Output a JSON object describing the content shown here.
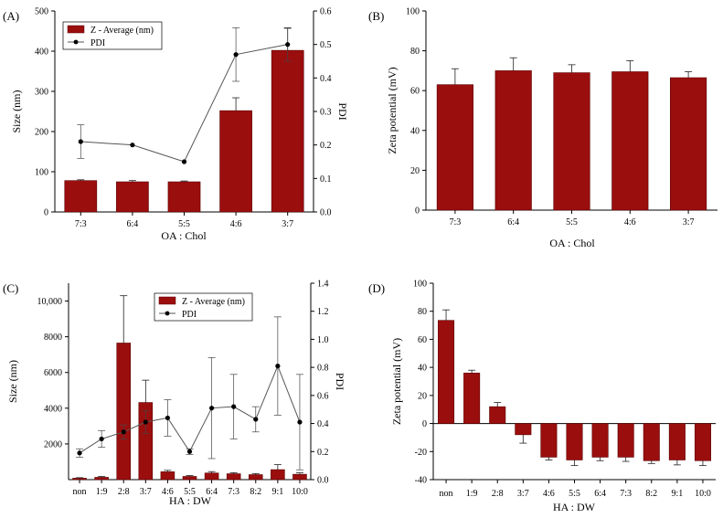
{
  "figure": {
    "colors": {
      "bar": "#9b0e0e",
      "bar_edge": "#5a0000",
      "line": "#555555",
      "axis": "#000000"
    }
  },
  "chart_data": [
    {
      "panel": "(A)",
      "type": "bar",
      "categories": [
        "7:3",
        "6:4",
        "5:5",
        "4:6",
        "3:7"
      ],
      "values": [
        78,
        75,
        75,
        252,
        402
      ],
      "errors": [
        2,
        3,
        2,
        32,
        55
      ],
      "ylim": [
        0,
        500
      ],
      "yticks": [
        "0",
        "100",
        "200",
        "300",
        "400",
        "500"
      ],
      "xlabel": "OA : Chol",
      "ylabel": "Size (nm)",
      "bar_series_name": "Z - Average (nm)",
      "secondary": {
        "type": "line",
        "name": "PDI",
        "ylabel": "PDI",
        "values": [
          0.21,
          0.2,
          0.15,
          0.47,
          0.5
        ],
        "errors": [
          0.05,
          0,
          0,
          0.08,
          0.05
        ],
        "ylim": [
          0,
          0.6
        ],
        "yticks": [
          "0.0",
          "0.1",
          "0.2",
          "0.3",
          "0.4",
          "0.5",
          "0.6"
        ]
      }
    },
    {
      "panel": "(B)",
      "type": "bar",
      "categories": [
        "7:3",
        "6:4",
        "5:5",
        "4:6",
        "3:7"
      ],
      "values": [
        63,
        70,
        69,
        69.5,
        66.5
      ],
      "errors": [
        8,
        6.5,
        4,
        5.5,
        3
      ],
      "ylim": [
        0,
        100
      ],
      "yticks": [
        "0",
        "20",
        "40",
        "60",
        "80",
        "100"
      ],
      "xlabel": "OA : Chol",
      "ylabel": "Zeta potential (mV)"
    },
    {
      "panel": "(C)",
      "type": "bar",
      "categories": [
        "non",
        "1:9",
        "2:8",
        "3:7",
        "4:6",
        "5:5",
        "6:4",
        "7:3",
        "8:2",
        "9:1",
        "10:0"
      ],
      "values": [
        80,
        130,
        7650,
        4320,
        440,
        180,
        370,
        330,
        280,
        560,
        300
      ],
      "errors": [
        30,
        50,
        2650,
        1250,
        80,
        50,
        80,
        60,
        60,
        280,
        80
      ],
      "ylim": [
        0,
        11000
      ],
      "yticks": [
        "2000",
        "4000",
        "6000",
        "8000",
        "10,000"
      ],
      "xlabel": "HA : DW",
      "ylabel": "Size (nm)",
      "bar_series_name": "Z - Average (nm)",
      "secondary": {
        "type": "line",
        "name": "PDI",
        "ylabel": "PDI",
        "values": [
          0.19,
          0.29,
          0.34,
          0.41,
          0.44,
          0.2,
          0.51,
          0.52,
          0.43,
          0.81,
          0.41
        ],
        "errors": [
          0.03,
          0.06,
          0.05,
          0.08,
          0.13,
          0.02,
          0.36,
          0.23,
          0.09,
          0.35,
          0.34
        ],
        "ylim": [
          0,
          1.4
        ],
        "yticks": [
          "0.0",
          "0.2",
          "0.4",
          "0.6",
          "0.8",
          "1.0",
          "1.2",
          "1.4"
        ]
      }
    },
    {
      "panel": "(D)",
      "type": "bar",
      "categories": [
        "non",
        "1:9",
        "2:8",
        "3:7",
        "4:6",
        "5:5",
        "6:4",
        "7:3",
        "8:2",
        "9:1",
        "10:0"
      ],
      "values": [
        73.5,
        36,
        12,
        -8,
        -24,
        -26,
        -24,
        -24,
        -26.5,
        -26,
        -26.5
      ],
      "errors": [
        7.5,
        2,
        3,
        6,
        2,
        4,
        2.5,
        3,
        2,
        3.5,
        3.5
      ],
      "ylim": [
        -40,
        100
      ],
      "yticks": [
        "-40",
        "-20",
        "0",
        "20",
        "40",
        "60",
        "80",
        "100"
      ],
      "xlabel": "HA : DW",
      "ylabel": "Zeta potential (mV)"
    }
  ]
}
